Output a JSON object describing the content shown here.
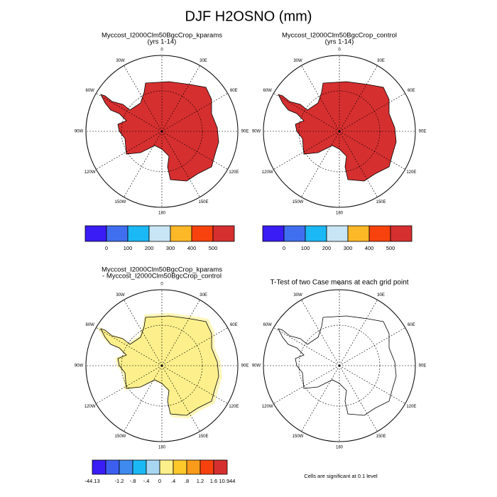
{
  "title": "DJF H2OSNO (mm)",
  "lon_labels": [
    "0",
    "30E",
    "60E",
    "90E",
    "120E",
    "150E",
    "180",
    "150W",
    "120W",
    "90W",
    "60W",
    "30W"
  ],
  "panels": [
    {
      "title_lines": [
        "Myccost_I2000Clm50BgcCrop_kparams",
        "(yrs 1-14)"
      ],
      "fill": "#d62f2f"
    },
    {
      "title_lines": [
        "Myccost_I2000Clm50BgcCrop_control",
        "(yrs 1-14)"
      ],
      "fill": "#d62f2f"
    },
    {
      "title_lines": [
        "Myccost_I2000Clm50BgcCrop_kparams",
        "- Myccost_I2000Clm50BgcCrop_control"
      ],
      "fill": "#fdf08c"
    },
    {
      "title_lines": [
        "T-Test of two Case means at each grid point"
      ],
      "fill": "#ffffff"
    }
  ],
  "colorbars": [
    {
      "colors": [
        "#3a1cf5",
        "#3f6fef",
        "#1ab8f4",
        "#c7e5f5",
        "#fdb827",
        "#f8420e",
        "#d62f2f"
      ],
      "labels": [
        "0",
        "100",
        "200",
        "300",
        "400",
        "500"
      ]
    },
    {
      "colors": [
        "#3a1cf5",
        "#3f6fef",
        "#1ab8f4",
        "#c7e5f5",
        "#fdb827",
        "#f8420e",
        "#d62f2f"
      ],
      "labels": [
        "0",
        "100",
        "200",
        "300",
        "400",
        "500"
      ]
    },
    {
      "colors": [
        "#3a1cf5",
        "#3c5fef",
        "#3f8aef",
        "#1ab8f4",
        "#a8d6f2",
        "#fdf08c",
        "#fdc92a",
        "#f89a1a",
        "#f8420e",
        "#d62f2f"
      ],
      "labels": [
        "-44.13",
        "-1.2",
        "-.8",
        "-.4",
        "0",
        ".4",
        ".8",
        "1.2",
        "1.6",
        "10.944"
      ]
    }
  ],
  "footnote": "Cells are significant at 0.1 level"
}
